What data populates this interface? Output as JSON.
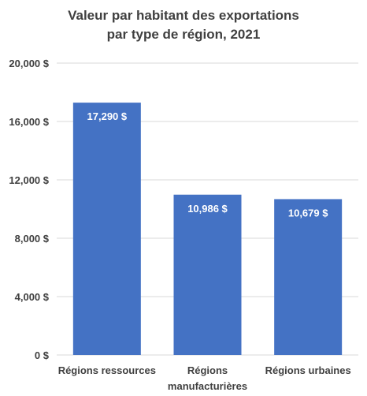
{
  "chart_data": {
    "type": "bar",
    "title_lines": [
      "Valeur par habitant des exportations",
      "par type de région, 2021"
    ],
    "categories": [
      [
        "Régions ressources"
      ],
      [
        "Régions",
        "manufacturières"
      ],
      [
        "Régions urbaines"
      ]
    ],
    "values": [
      17290,
      10986,
      10679
    ],
    "data_labels": [
      "17,290 $",
      "10,986 $",
      "10,679 $"
    ],
    "y_ticks": [
      0,
      4000,
      8000,
      12000,
      16000,
      20000
    ],
    "y_tick_labels": [
      "0 $",
      "4,000 $",
      "8,000 $",
      "12,000 $",
      "16,000 $",
      "20,000 $"
    ],
    "ylim": [
      0,
      20000
    ],
    "grid": true,
    "bar_color": "#4472C4",
    "grid_color": "#D9D9D9",
    "text_color": "#404040",
    "data_label_color": "#FFFFFF"
  }
}
